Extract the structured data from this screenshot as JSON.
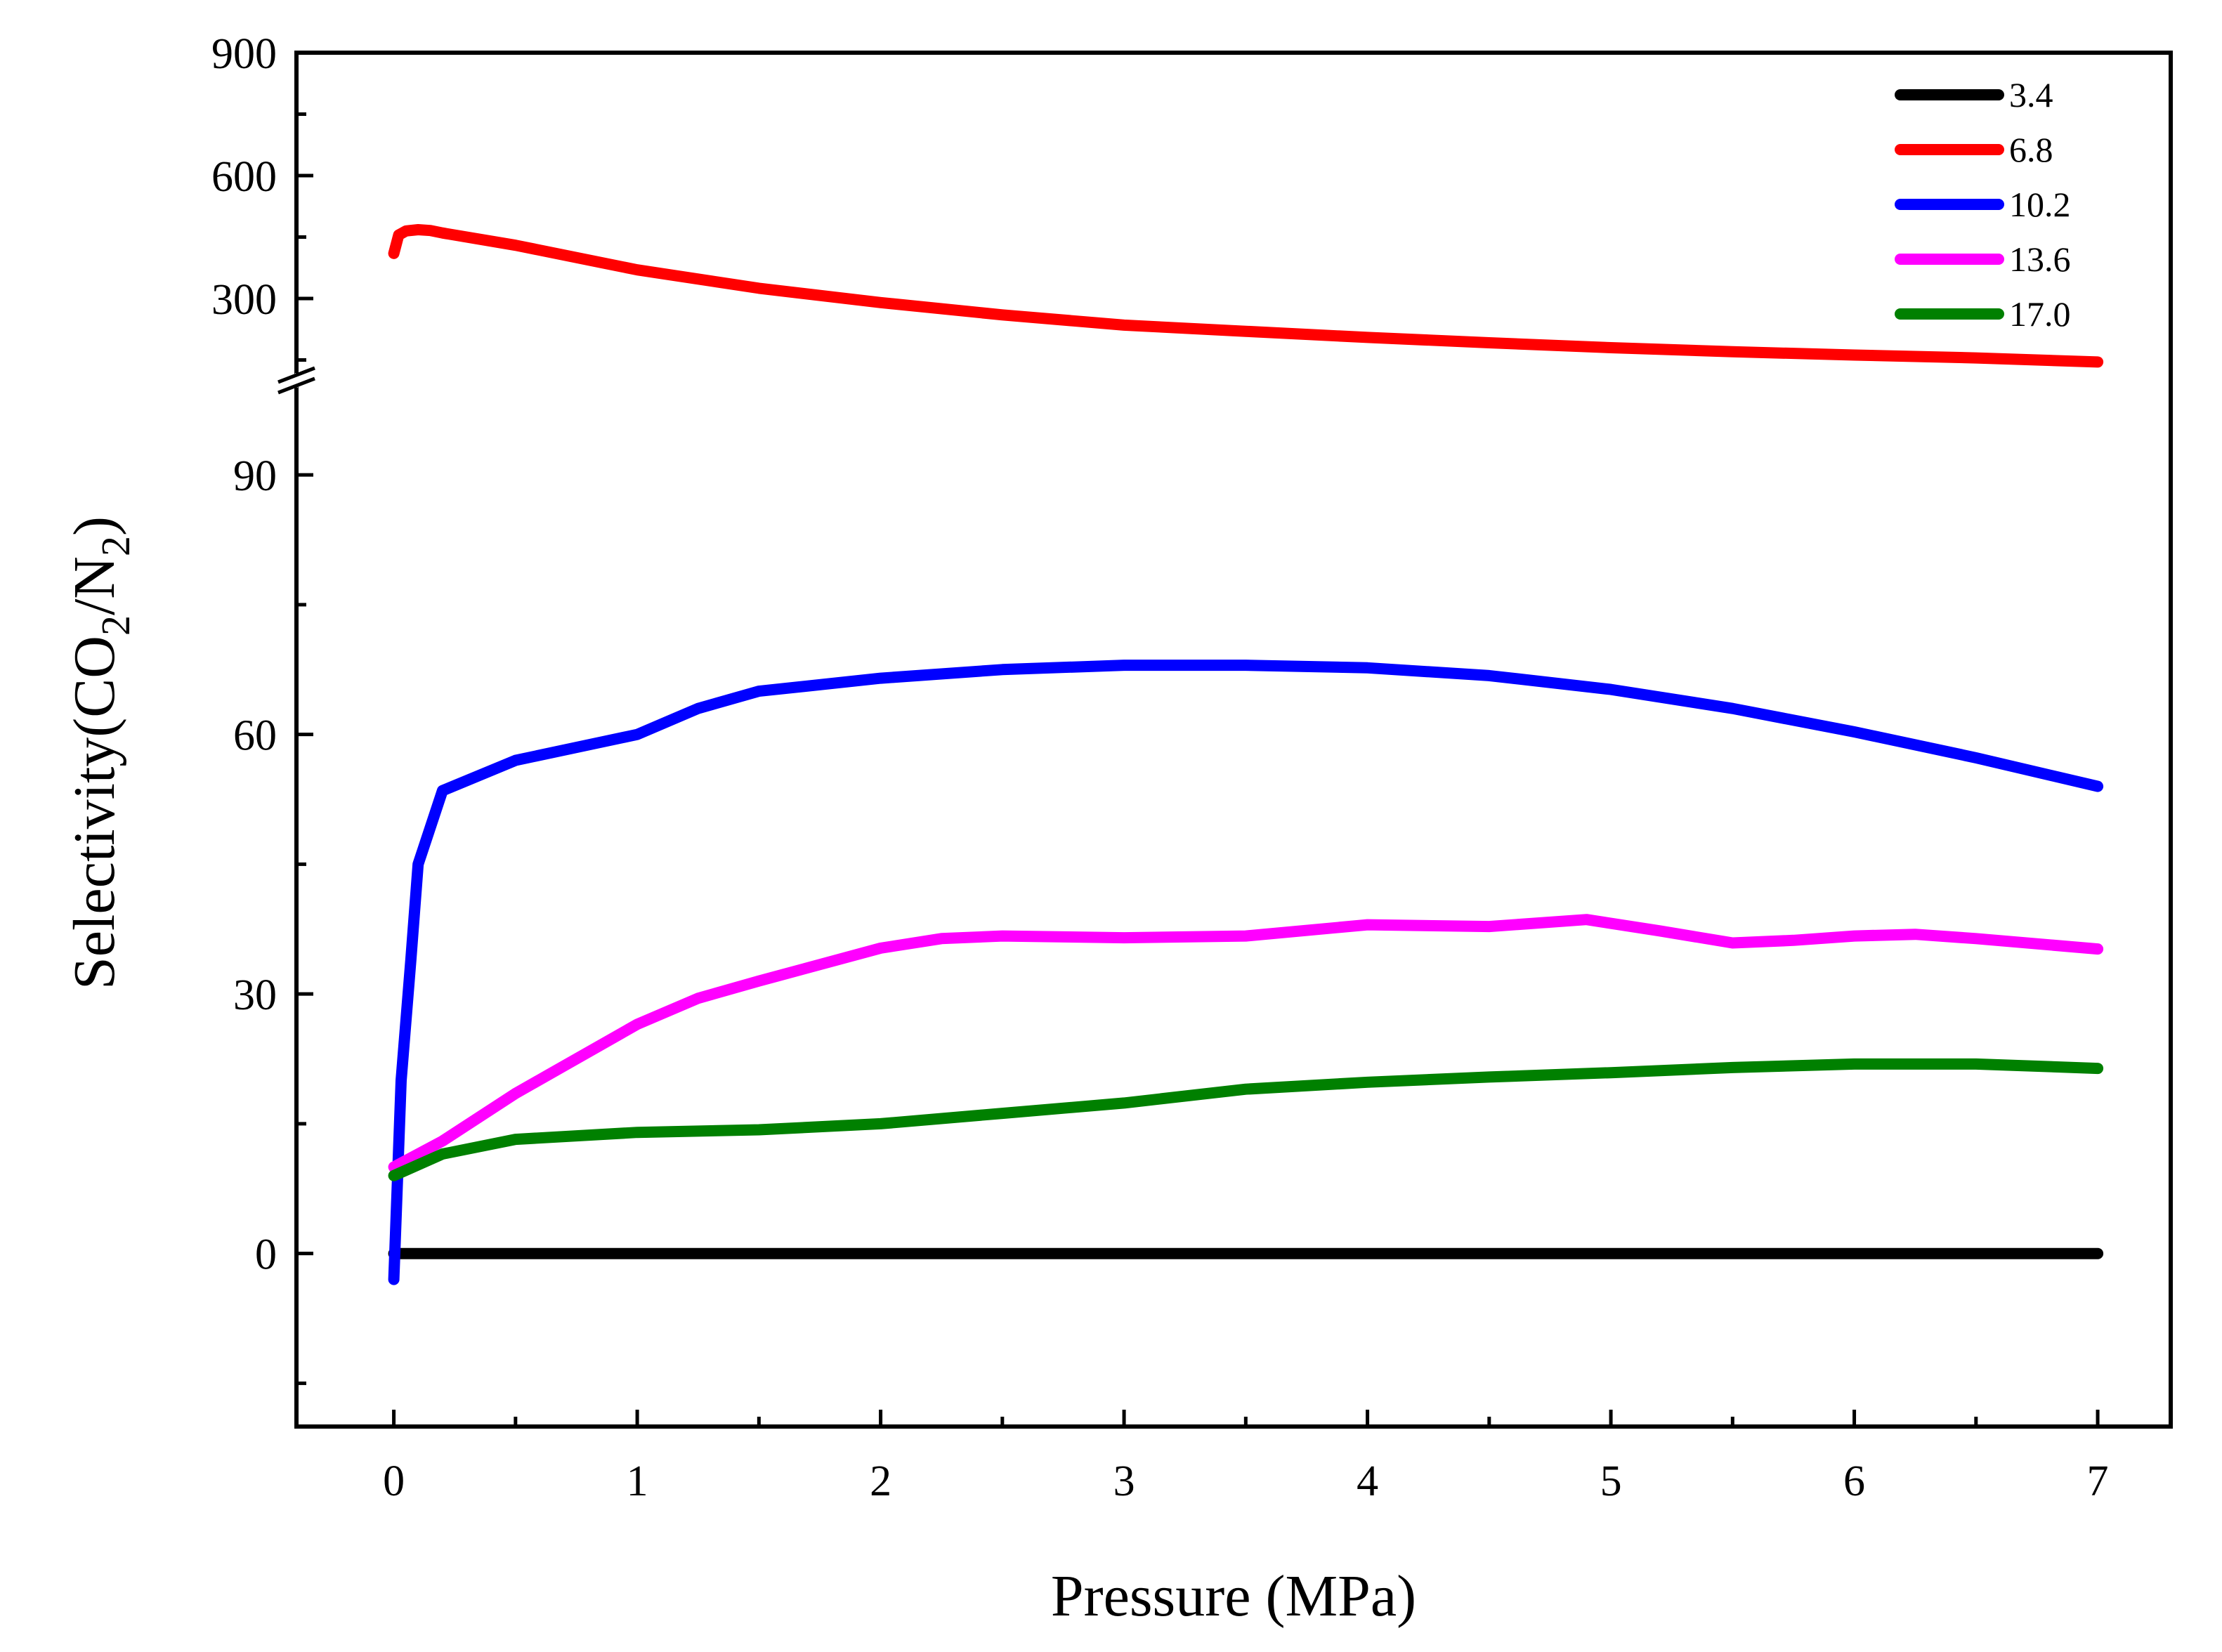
{
  "chart_data": {
    "type": "line",
    "title": "",
    "xlabel": "Pressure (MPa)",
    "ylabel_parts": {
      "base": "Selectivity(CO",
      "sub1": "2",
      "mid": "/N",
      "sub2": "2",
      "end": ")"
    },
    "xlim": [
      -0.4,
      7.3
    ],
    "xticks": [
      0,
      1,
      2,
      3,
      4,
      5,
      6,
      7
    ],
    "y_axis": {
      "broken": true,
      "lower_range": [
        -20,
        100
      ],
      "lower_ticks": [
        0,
        30,
        60,
        90
      ],
      "upper_range": [
        120,
        900
      ],
      "upper_ticks": [
        300,
        600,
        900
      ]
    },
    "legend_position": "top-right",
    "series": [
      {
        "name": "3.4",
        "color": "#000000",
        "x": [
          0,
          7
        ],
        "y": [
          0,
          0
        ]
      },
      {
        "name": "6.8",
        "color": "#ff0000",
        "x": [
          0,
          0.02,
          0.05,
          0.1,
          0.15,
          0.2,
          0.5,
          1.0,
          1.5,
          2.0,
          2.5,
          3.0,
          3.5,
          4.0,
          4.5,
          5.0,
          5.5,
          6.0,
          6.5,
          7.0
        ],
        "y": [
          410,
          455,
          465,
          468,
          466,
          460,
          430,
          370,
          325,
          290,
          260,
          235,
          220,
          205,
          192,
          180,
          170,
          162,
          155,
          145
        ]
      },
      {
        "name": "10.2",
        "color": "#0000ff",
        "x": [
          0,
          0.03,
          0.07,
          0.1,
          0.2,
          0.5,
          1.0,
          1.25,
          1.5,
          2.0,
          2.5,
          3.0,
          3.5,
          4.0,
          4.5,
          5.0,
          5.5,
          6.0,
          6.5,
          7.0
        ],
        "y": [
          -3,
          20,
          34,
          45,
          53.5,
          57,
          60,
          63,
          65,
          66.5,
          67.5,
          68,
          68,
          67.7,
          66.8,
          65.2,
          63,
          60.3,
          57.3,
          54
        ]
      },
      {
        "name": "13.6",
        "color": "#ff00ff",
        "x": [
          0,
          0.2,
          0.5,
          1.0,
          1.25,
          1.5,
          2.0,
          2.25,
          2.5,
          3.0,
          3.5,
          4.0,
          4.5,
          4.9,
          5.2,
          5.5,
          5.75,
          6.0,
          6.25,
          6.5,
          7.0
        ],
        "y": [
          10,
          13,
          18.5,
          26.5,
          29.5,
          31.5,
          35.3,
          36.4,
          36.7,
          36.5,
          36.7,
          38.0,
          37.8,
          38.6,
          37.3,
          35.9,
          36.2,
          36.7,
          36.9,
          36.4,
          35.2
        ]
      },
      {
        "name": "17.0",
        "color": "#008000",
        "x": [
          0,
          0.2,
          0.5,
          1.0,
          1.5,
          2.0,
          2.5,
          3.0,
          3.5,
          4.0,
          4.5,
          5.0,
          5.5,
          6.0,
          6.5,
          7.0
        ],
        "y": [
          9,
          11.5,
          13.2,
          14.0,
          14.3,
          15.0,
          16.2,
          17.4,
          19.0,
          19.8,
          20.4,
          20.9,
          21.5,
          21.9,
          21.9,
          21.4
        ]
      }
    ]
  }
}
